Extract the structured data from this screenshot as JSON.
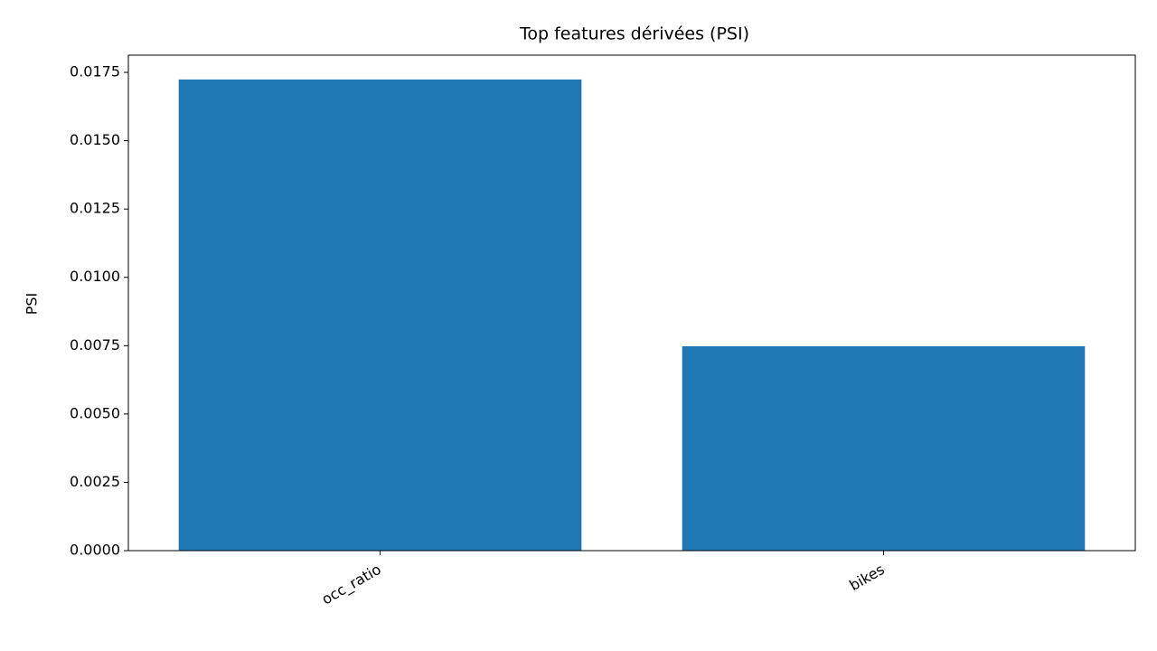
{
  "chart_data": {
    "type": "bar",
    "title": "Top features dérivées (PSI)",
    "y_label": "PSI",
    "categories": [
      "occ_ratio",
      "bikes"
    ],
    "values": [
      0.01724,
      0.00748
    ],
    "color": "#1f77b4",
    "ylim": [
      0,
      0.01813
    ],
    "yticks": [
      {
        "value": 0,
        "label": "0.0000"
      },
      {
        "value": 0.0025,
        "label": "0.0025"
      },
      {
        "value": 0.005,
        "label": "0.0050"
      },
      {
        "value": 0.0075,
        "label": "0.0075"
      },
      {
        "value": 0.01,
        "label": "0.0100"
      },
      {
        "value": 0.0125,
        "label": "0.0125"
      },
      {
        "value": 0.015,
        "label": "0.0150"
      },
      {
        "value": 0.0175,
        "label": "0.0175"
      }
    ],
    "grid": false
  }
}
